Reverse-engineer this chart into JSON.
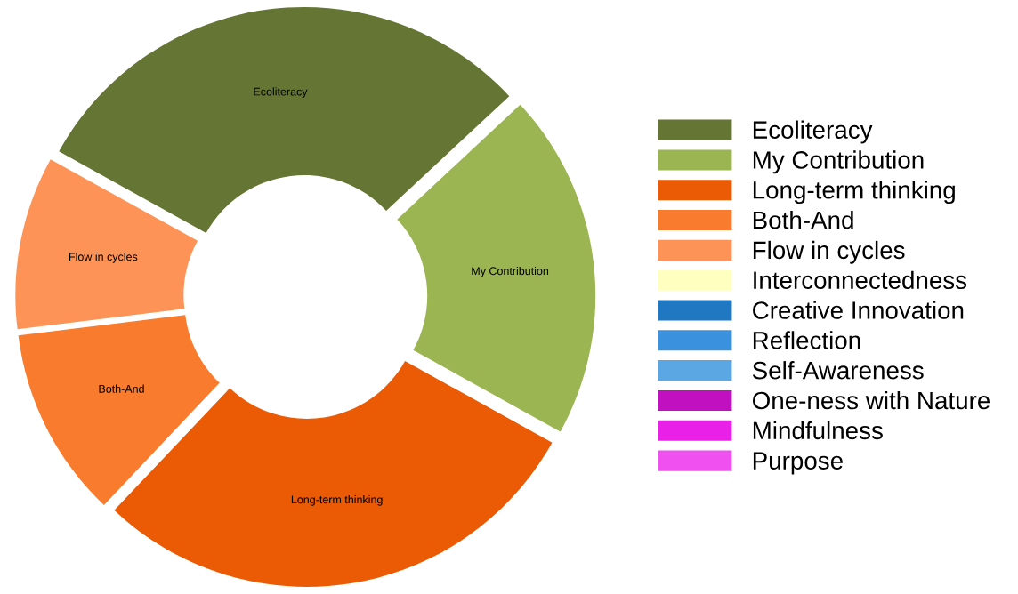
{
  "chart_data": {
    "type": "donut",
    "categories": [
      "Ecoliteracy",
      "My Contribution",
      "Long-term thinking",
      "Both-And",
      "Flow in cycles",
      "Interconnectedness",
      "Creative Innovation",
      "Reflection",
      "Self-Awareness",
      "One-ness with Nature",
      "Mindfulness",
      "Purpose"
    ],
    "values": [
      30,
      20,
      29,
      11,
      10,
      0,
      0,
      0,
      0,
      0,
      0,
      0
    ],
    "colors": [
      "#647534",
      "#9bb552",
      "#eb5a05",
      "#f97b2e",
      "#fd9356",
      "#ffffc0",
      "#1f78c1",
      "#3a92de",
      "#5ba7e3",
      "#c010c0",
      "#e920e8",
      "#f050f0"
    ],
    "legend": "right"
  }
}
